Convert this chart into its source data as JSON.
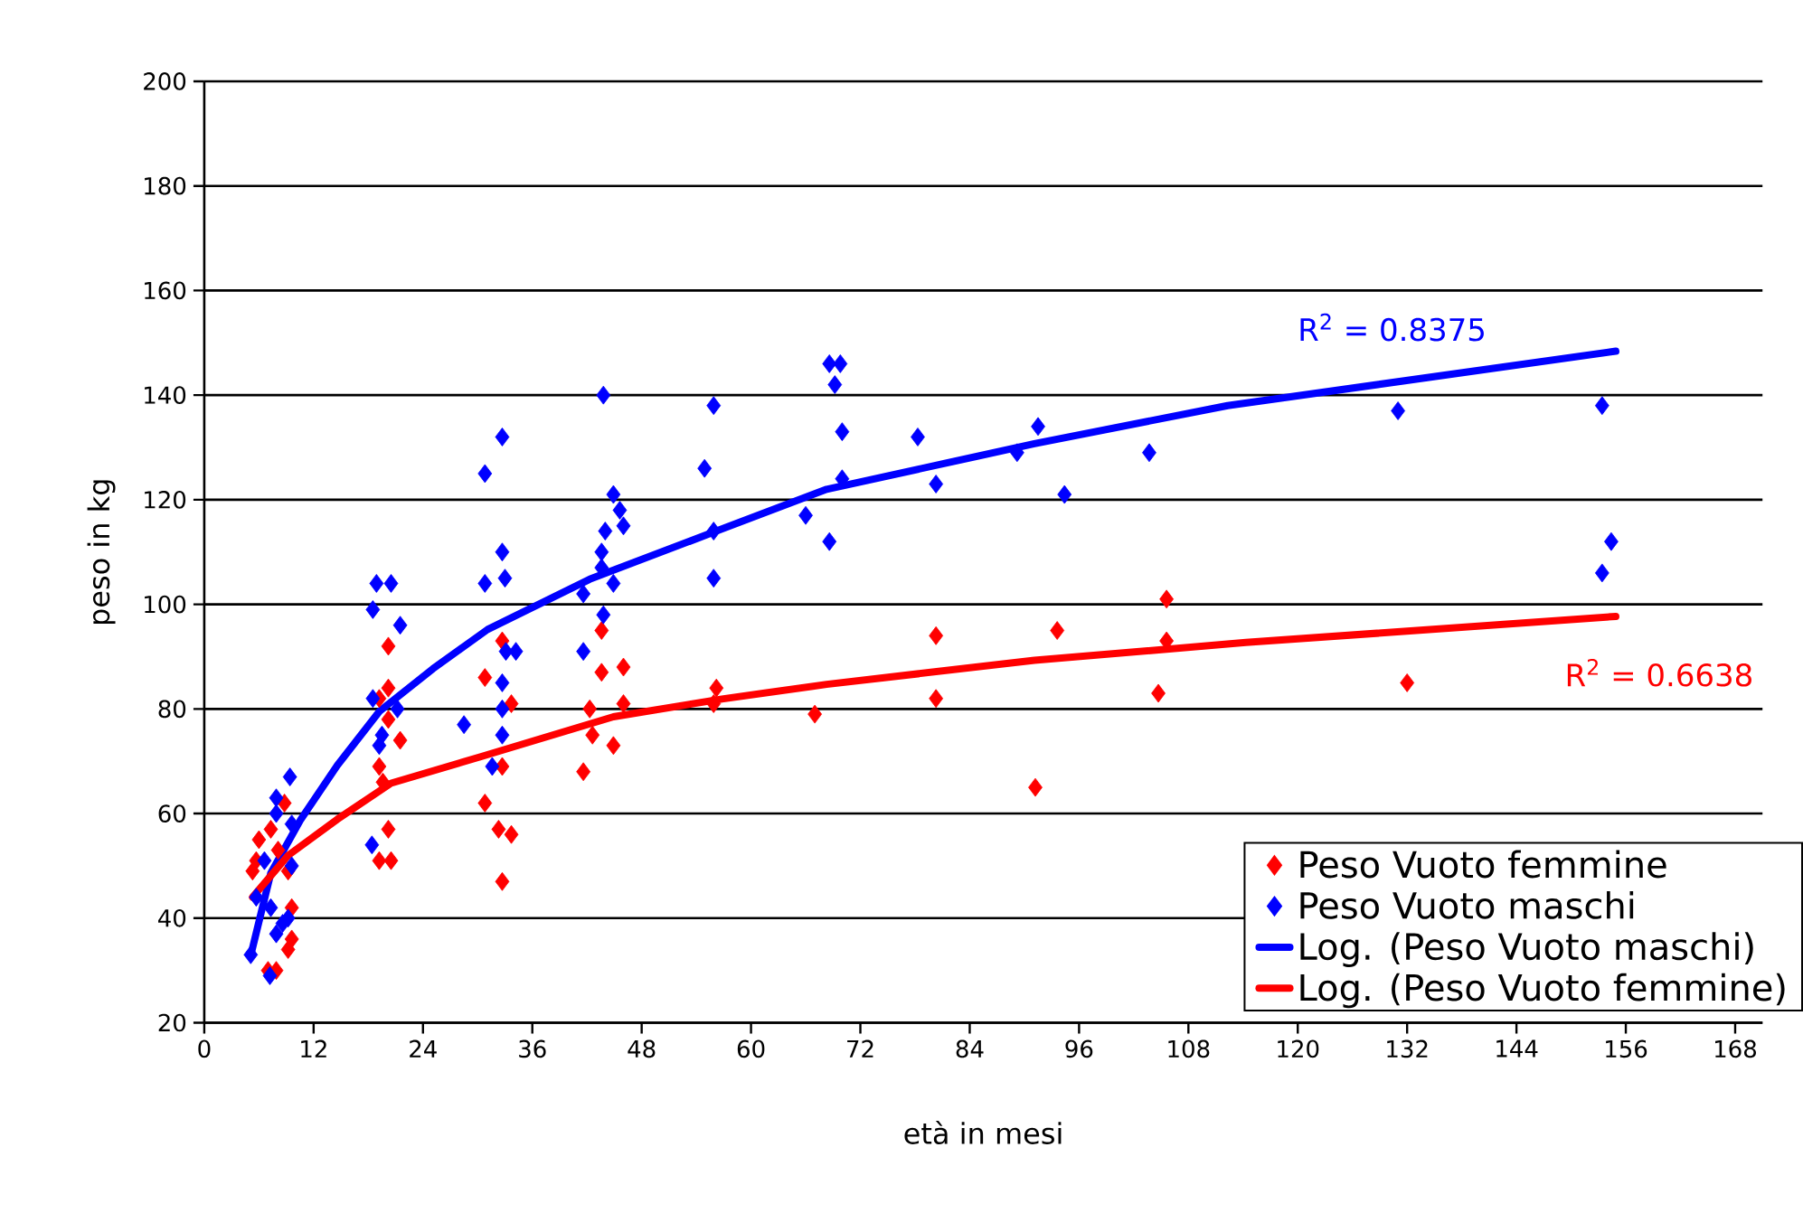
{
  "chart_data": {
    "type": "scatter",
    "xlabel": "età in mesi",
    "ylabel": "peso in kg",
    "xlim": [
      0,
      171
    ],
    "ylim": [
      20,
      200
    ],
    "xticks": [
      0,
      12,
      24,
      36,
      48,
      60,
      72,
      84,
      96,
      108,
      120,
      132,
      144,
      156,
      168
    ],
    "yticks": [
      20,
      40,
      60,
      80,
      100,
      120,
      140,
      160,
      180,
      200
    ],
    "grid": "y",
    "legend": "bottom right",
    "annotations": [
      "R$^{2}$ = 0.8375",
      "R$^{2}$ = 0.6638"
    ],
    "series": [
      {
        "name": "Peso Vuoto femmine",
        "marker": "diamond",
        "color": "#ff0000",
        "x": [
          8.8,
          6,
          5.7,
          7.3,
          8.1,
          5.3,
          9.2,
          9.6,
          9.2,
          9.6,
          7.9,
          7,
          20.2,
          20.2,
          19.2,
          20.2,
          21.5,
          19.2,
          19.6,
          20.2,
          19.2,
          20.5,
          30.8,
          30.8,
          32.7,
          33.7,
          32.7,
          32.3,
          33.7,
          32.7,
          43.6,
          43.6,
          46,
          42.3,
          46,
          42.6,
          44.9,
          41.6,
          56.2,
          55.9,
          67,
          80.3,
          80.3,
          91.2,
          93.6,
          105.6,
          105.6,
          104.7,
          132
        ],
        "values": [
          62,
          55,
          51,
          57,
          53,
          49,
          49,
          42,
          34,
          36,
          30,
          30,
          92,
          84,
          82,
          78,
          74,
          69,
          66,
          57,
          51,
          51,
          86,
          62,
          93,
          81,
          69,
          57,
          56,
          47,
          95,
          87,
          88,
          80,
          81,
          75,
          73,
          68,
          84,
          81,
          79,
          94,
          82,
          65,
          95,
          101,
          93,
          83,
          85
        ]
      },
      {
        "name": "Peso Vuoto maschi",
        "marker": "diamond",
        "color": "#0000ff",
        "x": [
          5.1,
          7.2,
          9.4,
          7.9,
          7.9,
          9.6,
          6.6,
          9.6,
          5.7,
          7.3,
          8.6,
          7.9,
          9.2,
          18.5,
          18.9,
          20.5,
          21.5,
          18.5,
          21.2,
          19.2,
          19.5,
          18.4,
          28.5,
          30.8,
          30.8,
          32.7,
          32.7,
          33,
          33.1,
          34.2,
          32.7,
          32.7,
          32.7,
          31.6,
          43.8,
          55.9,
          54.9,
          44.9,
          45.6,
          46,
          44,
          43.6,
          44.9,
          43.6,
          41.6,
          43.8,
          41.6,
          55.9,
          55.9,
          66,
          68.6,
          68.6,
          69.8,
          69.2,
          70,
          78.3,
          70,
          80.3,
          89.2,
          91.5,
          94.4,
          103.7,
          131,
          153.4,
          154.4,
          153.4
        ],
        "values": [
          33,
          29,
          67,
          63,
          60,
          58,
          51,
          50,
          44,
          42,
          39,
          37,
          40,
          99,
          104,
          104,
          96,
          82,
          80,
          73,
          75,
          54,
          77,
          125,
          104,
          132,
          110,
          105,
          91,
          91,
          85,
          80,
          75,
          69,
          140,
          138,
          126,
          121,
          118,
          115,
          114,
          110,
          104,
          107,
          102,
          98,
          91,
          114,
          105,
          117,
          112,
          146,
          146,
          142,
          133,
          132,
          124,
          123,
          129,
          134,
          121,
          129,
          137,
          138,
          112,
          106
        ]
      },
      {
        "name": "Log. (Peso Vuoto maschi)",
        "type": "line",
        "marker": "none",
        "color": "#0000ff",
        "x": [
          5.2,
          7.3,
          10.6,
          14.6,
          19.2,
          25.1,
          31.1,
          42.3,
          56.2,
          68.3,
          91.1,
          112.3,
          154.9
        ],
        "values": [
          33.6,
          48.6,
          58.9,
          69.2,
          79.5,
          87.7,
          95.2,
          104.8,
          114,
          122,
          130.7,
          138,
          148.4
        ]
      },
      {
        "name": "Log. (Peso Vuoto femmine)",
        "type": "line",
        "marker": "none",
        "color": "#ff0000",
        "x": [
          5.3,
          9.2,
          14.6,
          20.5,
          30.4,
          44.9,
          56.8,
          68.3,
          91.1,
          114.3,
          154.9
        ],
        "values": [
          44,
          52,
          58.9,
          65.8,
          70.9,
          78.5,
          81.9,
          84.7,
          89.3,
          92.7,
          97.7
        ]
      }
    ]
  }
}
